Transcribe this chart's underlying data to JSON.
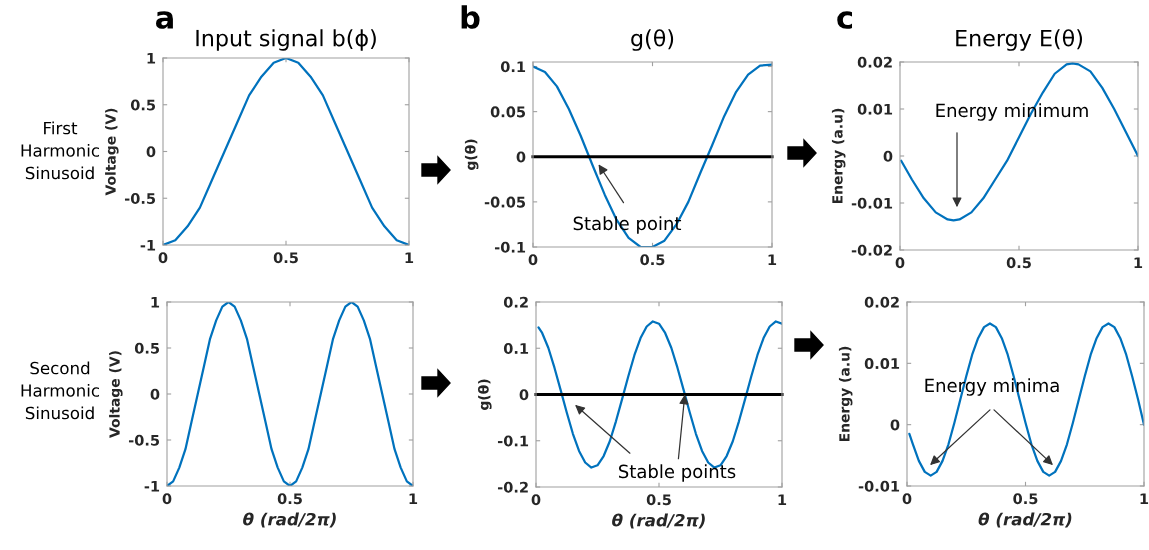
{
  "chart_data": [
    {
      "type": "line",
      "title": "Input signal b(ϕ)",
      "ylabel": "Voltage (V)",
      "annotations": [
        "a",
        "First\nHarmonic\nSinusoid"
      ],
      "x": [
        0,
        0.05,
        0.1,
        0.15,
        0.2,
        0.25,
        0.3,
        0.35,
        0.4,
        0.45,
        0.5,
        0.55,
        0.6,
        0.65,
        0.7,
        0.75,
        0.8,
        0.85,
        0.9,
        0.95,
        1
      ],
      "series": [
        {
          "color": "#0072bd",
          "values": [
            -1,
            -0.95,
            -0.8,
            -0.6,
            -0.3,
            0,
            0.3,
            0.6,
            0.8,
            0.95,
            1,
            0.95,
            0.8,
            0.6,
            0.3,
            0,
            -0.3,
            -0.6,
            -0.8,
            -0.95,
            -1
          ]
        }
      ],
      "xlim": [
        0,
        1
      ],
      "xticks": [
        0,
        0.5,
        1
      ],
      "ylim": [
        -1,
        1
      ],
      "yticks": [
        -1,
        -0.5,
        0,
        0.5,
        1
      ]
    },
    {
      "type": "line",
      "title": "g(θ)",
      "ylabel": "g(θ)",
      "annotations": [
        "b",
        "Stable point"
      ],
      "x": [
        0,
        0.05,
        0.1,
        0.15,
        0.2,
        0.25,
        0.3,
        0.35,
        0.4,
        0.45,
        0.5,
        0.55,
        0.6,
        0.65,
        0.7,
        0.75,
        0.8,
        0.85,
        0.9,
        0.95,
        1
      ],
      "series": [
        {
          "color": "#0072bd",
          "values": [
            0.1,
            0.094,
            0.078,
            0.053,
            0.023,
            -0.01,
            -0.042,
            -0.07,
            -0.09,
            -0.1,
            -0.1,
            -0.093,
            -0.075,
            -0.05,
            -0.018,
            0.013,
            0.045,
            0.072,
            0.091,
            0.101,
            0.102
          ]
        }
      ],
      "ref_lines": [
        {
          "axis": "y",
          "value": 0,
          "color": "#000000"
        }
      ],
      "xlim": [
        0,
        1
      ],
      "xticks": [
        0,
        0.5,
        1
      ],
      "ylim": [
        -0.1,
        0.105
      ],
      "yticks": [
        -0.1,
        -0.05,
        0,
        0.05,
        0.1
      ]
    },
    {
      "type": "line",
      "title": "Energy E(θ)",
      "ylabel": "Energy (a.u)",
      "annotations": [
        "c",
        "Energy minimum"
      ],
      "x": [
        0.005,
        0.05,
        0.1,
        0.15,
        0.2,
        0.225,
        0.25,
        0.3,
        0.35,
        0.4,
        0.45,
        0.5,
        0.55,
        0.6,
        0.65,
        0.7,
        0.725,
        0.75,
        0.8,
        0.85,
        0.9,
        0.95,
        1
      ],
      "series": [
        {
          "color": "#0072bd",
          "values": [
            -0.001,
            -0.005,
            -0.009,
            -0.012,
            -0.0135,
            -0.0137,
            -0.0135,
            -0.012,
            -0.009,
            -0.005,
            -0.001,
            0.004,
            0.009,
            0.0135,
            0.0175,
            0.0195,
            0.0197,
            0.0195,
            0.018,
            0.0145,
            0.01,
            0.005,
            0
          ]
        }
      ],
      "xlim": [
        0,
        1
      ],
      "xticks": [
        0,
        0.5,
        1
      ],
      "ylim": [
        -0.02,
        0.02
      ],
      "yticks": [
        -0.02,
        -0.01,
        0,
        0.01,
        0.02
      ]
    },
    {
      "type": "line",
      "xlabel": "θ (rad/2π)",
      "ylabel": "Voltage (V)",
      "annotations": [
        "Second\nHarmonic\nSinusoid"
      ],
      "x": [
        0,
        0.025,
        0.05,
        0.075,
        0.1,
        0.125,
        0.15,
        0.175,
        0.2,
        0.225,
        0.25,
        0.275,
        0.3,
        0.325,
        0.35,
        0.375,
        0.4,
        0.425,
        0.45,
        0.475,
        0.5,
        0.525,
        0.55,
        0.575,
        0.6,
        0.625,
        0.65,
        0.675,
        0.7,
        0.725,
        0.75,
        0.775,
        0.8,
        0.825,
        0.85,
        0.875,
        0.9,
        0.925,
        0.95,
        0.975,
        1
      ],
      "series": [
        {
          "color": "#0072bd",
          "values": [
            -1,
            -0.95,
            -0.8,
            -0.6,
            -0.3,
            0,
            0.3,
            0.6,
            0.8,
            0.95,
            1,
            0.95,
            0.8,
            0.6,
            0.3,
            0,
            -0.3,
            -0.6,
            -0.8,
            -0.95,
            -1,
            -0.95,
            -0.8,
            -0.6,
            -0.3,
            0,
            0.3,
            0.6,
            0.8,
            0.95,
            1,
            0.95,
            0.8,
            0.6,
            0.3,
            0,
            -0.3,
            -0.6,
            -0.8,
            -0.95,
            -1
          ]
        }
      ],
      "xlim": [
        0,
        1
      ],
      "xticks": [
        0,
        0.5,
        1
      ],
      "ylim": [
        -1,
        1
      ],
      "yticks": [
        -1,
        -0.5,
        0,
        0.5,
        1
      ]
    },
    {
      "type": "line",
      "xlabel": "θ (rad/2π)",
      "ylabel": "g(θ)",
      "annotations": [
        {
          "text": "Stable points",
          "x": 0.605,
          "y": 0
        }
      ],
      "x": [
        0.01,
        0.025,
        0.05,
        0.075,
        0.1,
        0.125,
        0.15,
        0.175,
        0.2,
        0.225,
        0.25,
        0.275,
        0.3,
        0.325,
        0.35,
        0.375,
        0.4,
        0.425,
        0.45,
        0.475,
        0.5,
        0.525,
        0.55,
        0.575,
        0.6,
        0.625,
        0.65,
        0.675,
        0.7,
        0.725,
        0.75,
        0.775,
        0.8,
        0.825,
        0.85,
        0.875,
        0.9,
        0.925,
        0.95,
        0.975,
        1
      ],
      "series": [
        {
          "color": "#0072bd",
          "values": [
            0.145,
            0.133,
            0.101,
            0.058,
            0.01,
            -0.039,
            -0.085,
            -0.122,
            -0.147,
            -0.158,
            -0.153,
            -0.133,
            -0.101,
            -0.058,
            -0.01,
            0.039,
            0.085,
            0.122,
            0.147,
            0.158,
            0.153,
            0.133,
            0.101,
            0.058,
            0.01,
            -0.039,
            -0.085,
            -0.122,
            -0.147,
            -0.158,
            -0.153,
            -0.133,
            -0.101,
            -0.058,
            -0.01,
            0.039,
            0.085,
            0.122,
            0.147,
            0.158,
            0.153
          ]
        }
      ],
      "ref_lines": [
        {
          "axis": "y",
          "value": 0,
          "color": "#000000"
        }
      ],
      "xlim": [
        0,
        1
      ],
      "xticks": [
        0,
        0.5,
        1
      ],
      "ylim": [
        -0.2,
        0.2
      ],
      "yticks": [
        -0.2,
        -0.1,
        0,
        0.1,
        0.2
      ]
    },
    {
      "type": "line",
      "xlabel": "θ (rad/2π)",
      "ylabel": "Energy (a.u)",
      "annotations": [
        "Energy minima"
      ],
      "x": [
        0.01,
        0.025,
        0.05,
        0.075,
        0.1,
        0.125,
        0.15,
        0.175,
        0.2,
        0.225,
        0.25,
        0.275,
        0.3,
        0.325,
        0.35,
        0.375,
        0.4,
        0.425,
        0.45,
        0.475,
        0.5,
        0.525,
        0.55,
        0.575,
        0.6,
        0.625,
        0.65,
        0.675,
        0.7,
        0.725,
        0.75,
        0.775,
        0.8,
        0.825,
        0.85,
        0.875,
        0.9,
        0.925,
        0.95,
        0.975,
        1
      ],
      "series": [
        {
          "color": "#0072bd",
          "values": [
            -0.0015,
            -0.0032,
            -0.0059,
            -0.0077,
            -0.0083,
            -0.0077,
            -0.0059,
            -0.0032,
            0.0003,
            0.0041,
            0.0079,
            0.0114,
            0.0141,
            0.0159,
            0.0165,
            0.0159,
            0.0141,
            0.0114,
            0.0079,
            0.0041,
            0.0003,
            -0.0032,
            -0.0059,
            -0.0077,
            -0.0083,
            -0.0077,
            -0.0059,
            -0.0032,
            0.0003,
            0.0041,
            0.0079,
            0.0114,
            0.0141,
            0.0159,
            0.0165,
            0.0159,
            0.0141,
            0.0114,
            0.0079,
            0.0041,
            0
          ]
        }
      ],
      "xlim": [
        0,
        1
      ],
      "xticks": [
        0,
        0.5,
        1
      ],
      "ylim": [
        -0.01,
        0.02
      ],
      "yticks": [
        -0.01,
        0,
        0.01,
        0.02
      ]
    }
  ]
}
